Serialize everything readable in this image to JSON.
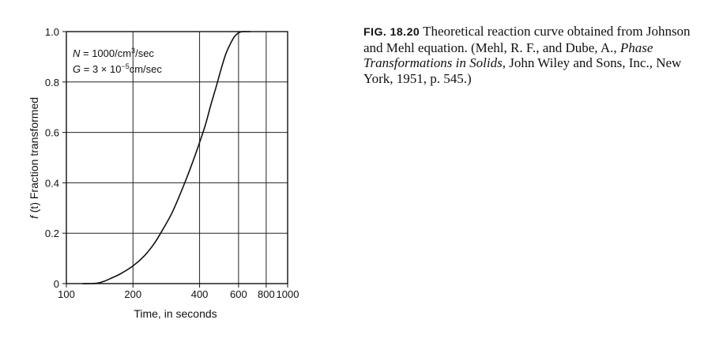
{
  "chart_data": {
    "type": "line",
    "x_scale": "log",
    "xlabel": "Time, in seconds",
    "ylabel": "f (t) Fraction transformed",
    "xlim": [
      100,
      1000
    ],
    "ylim": [
      0,
      1.0
    ],
    "x_ticks": [
      100,
      200,
      400,
      600,
      800,
      1000
    ],
    "x_tick_labels": [
      "100",
      "200",
      "400",
      "600",
      "800",
      "1000"
    ],
    "y_ticks": [
      0,
      0.2,
      0.4,
      0.6,
      0.8,
      1.0
    ],
    "y_tick_labels": [
      "0",
      "0.2",
      "0.4",
      "0.6",
      "0.8",
      "1.0"
    ],
    "grid": true,
    "annotation": {
      "line1_var": "N",
      "line1_rest": " = 1000/cm",
      "line1_sup": "3",
      "line1_tail": "/sec",
      "line2_var": "G",
      "line2_rest": " = 3 × 10",
      "line2_sup": "−5",
      "line2_tail": "cm/sec"
    },
    "series": [
      {
        "x": [
          118,
          130,
          140,
          150,
          160,
          175,
          200,
          225,
          250,
          275,
          300,
          325,
          350,
          375,
          400,
          425,
          450,
          475,
          500,
          525,
          550,
          575,
          600,
          625,
          650,
          680
        ],
        "y": [
          0.0,
          0.0,
          0.003,
          0.011,
          0.022,
          0.038,
          0.07,
          0.11,
          0.16,
          0.22,
          0.28,
          0.35,
          0.42,
          0.49,
          0.56,
          0.63,
          0.71,
          0.78,
          0.85,
          0.91,
          0.95,
          0.98,
          0.995,
          1.0,
          1.0,
          1.0
        ]
      }
    ]
  },
  "caption": {
    "fig_label": "FIG. 18.20",
    "text_main": " Theoretical reaction curve obtained from Johnson and Mehl equation. (Mehl, R. F., and Dube, A., ",
    "text_italic": "Phase Transformations in Solids",
    "text_end": ", John Wiley and Sons, Inc., New York, 1951, p. 545.)"
  }
}
